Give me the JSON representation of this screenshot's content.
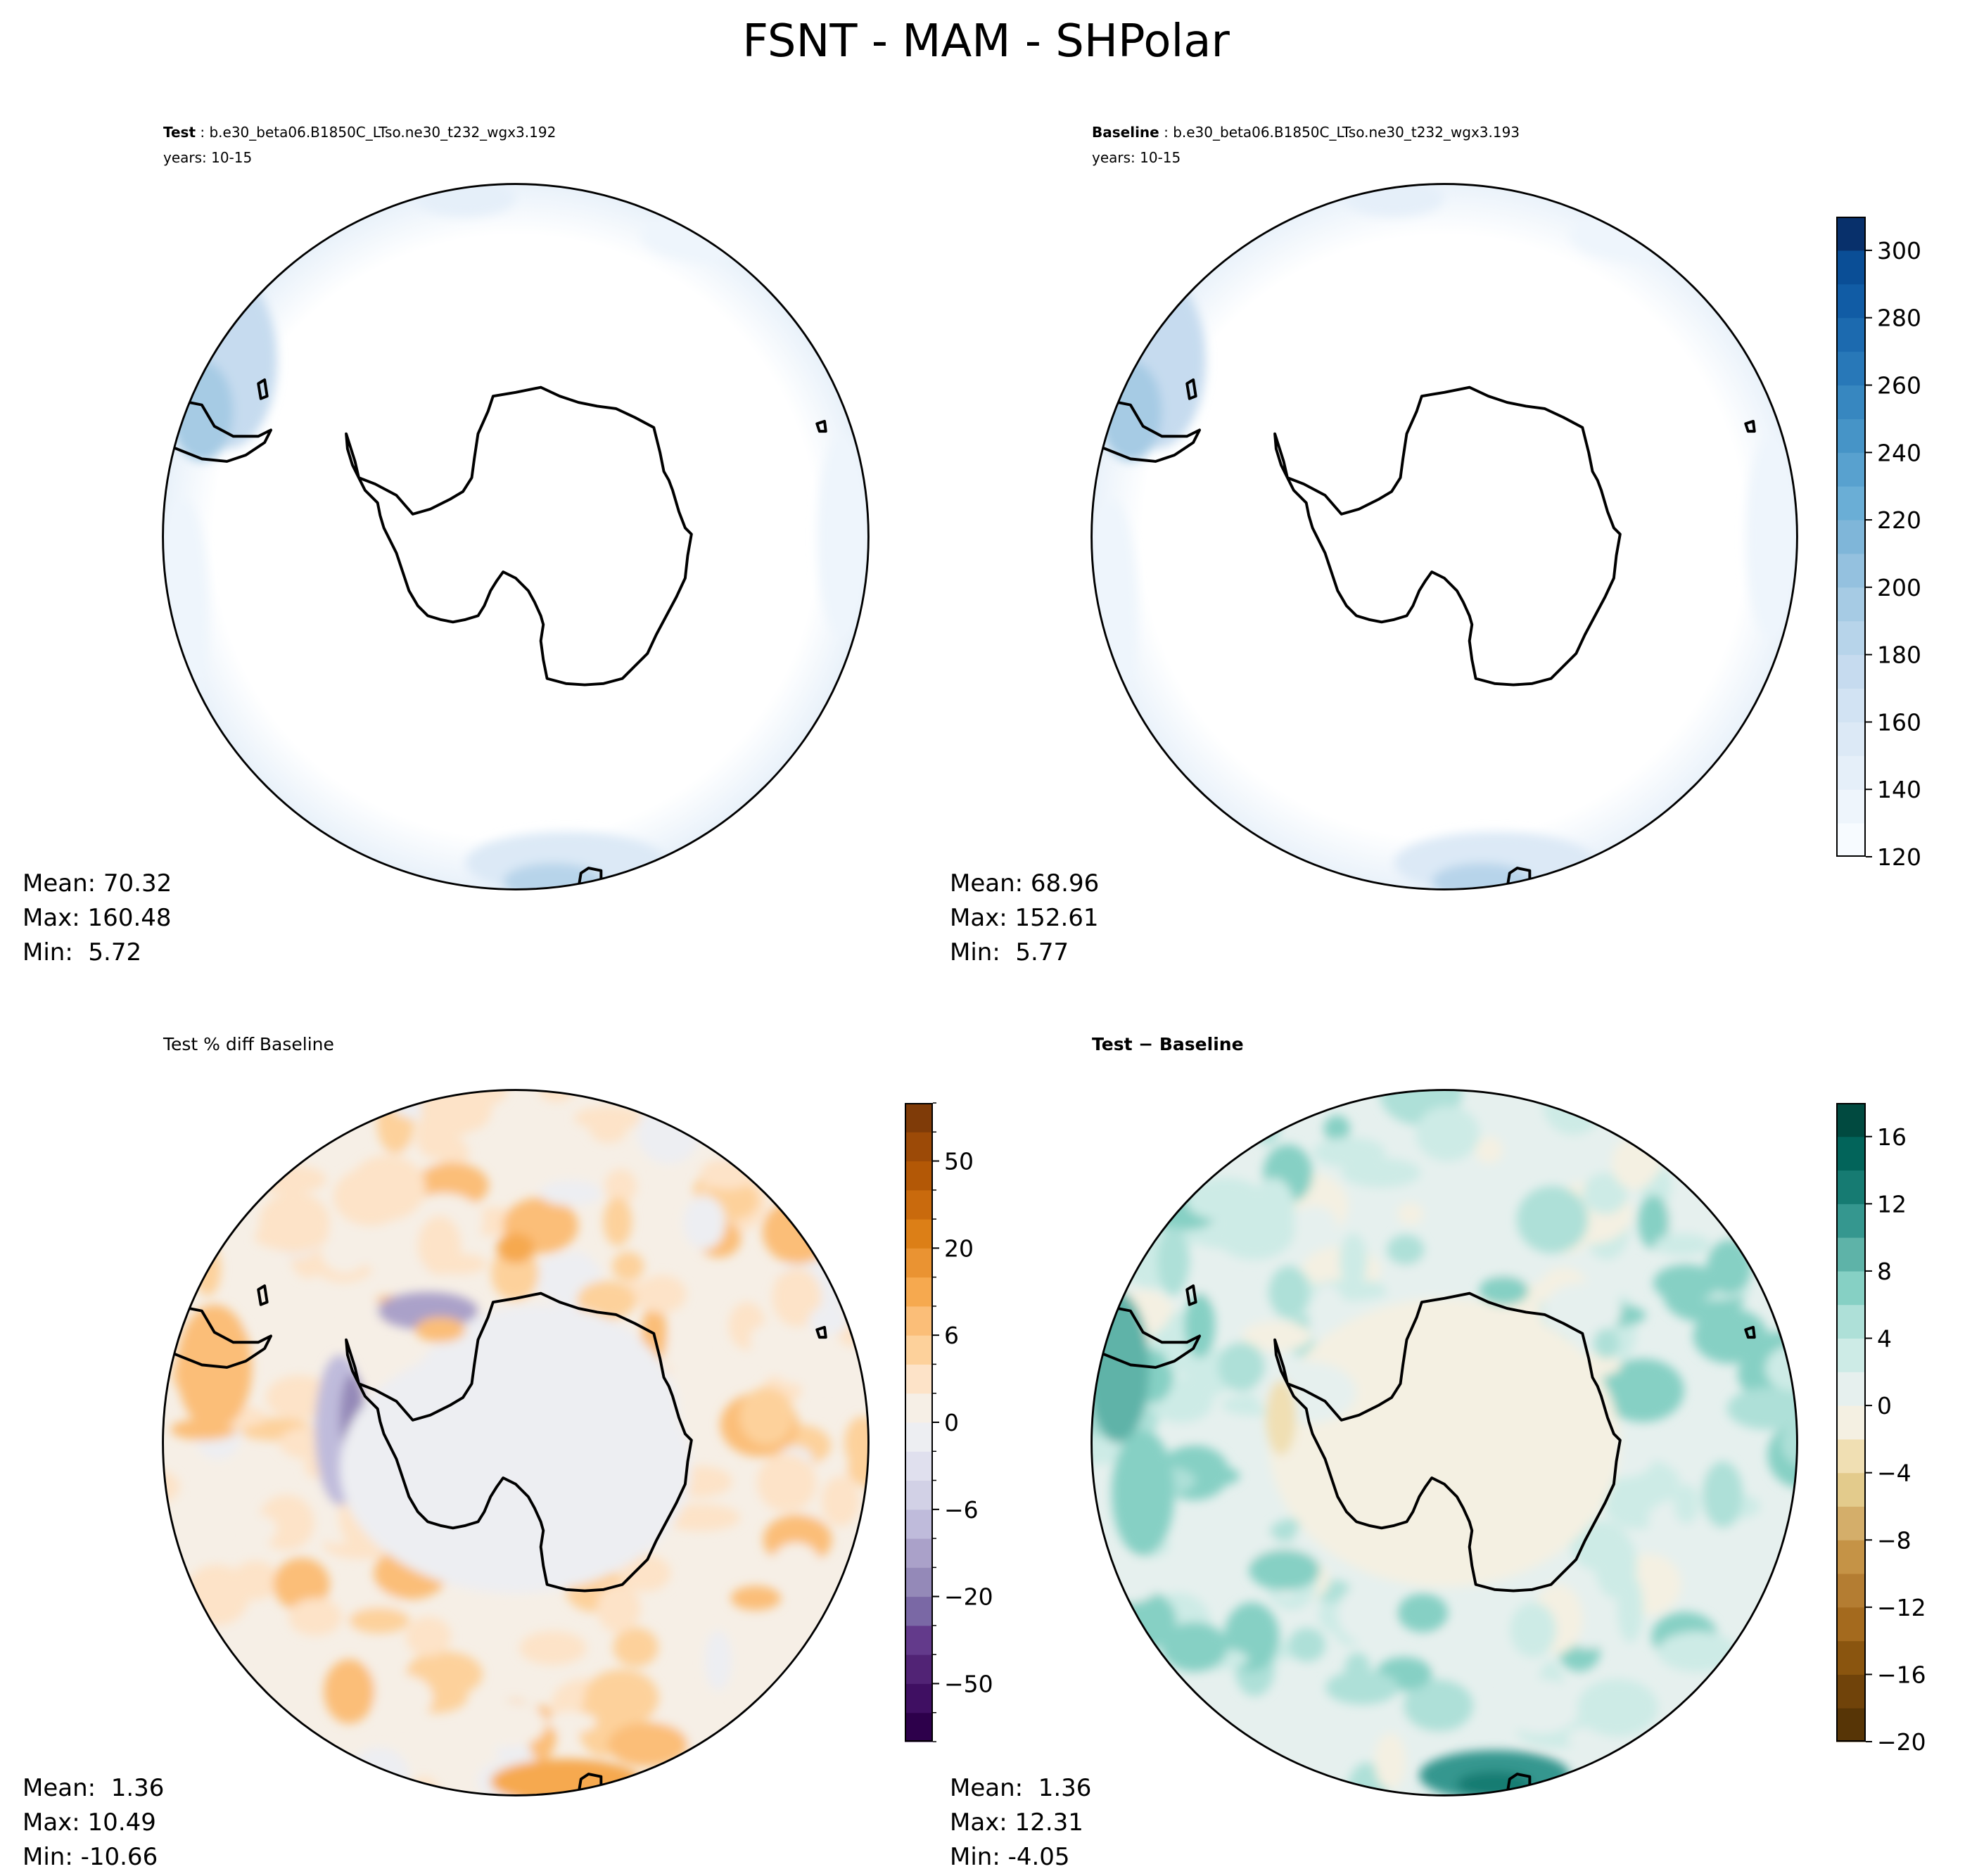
{
  "title": "FSNT - MAM - SHPolar",
  "panels": {
    "test": {
      "label": "Test",
      "case": " : b.e30_beta06.B1850C_LTso.ne30_t232_wgx3.192",
      "years": "years: 10-15",
      "stats": {
        "mean": "Mean: 70.32",
        "max": "Max: 160.48",
        "min": "Min:  5.72"
      }
    },
    "baseline": {
      "label": "Baseline",
      "case": " : b.e30_beta06.B1850C_LTso.ne30_t232_wgx3.193",
      "years": "years: 10-15",
      "stats": {
        "mean": "Mean: 68.96",
        "max": "Max: 152.61",
        "min": "Min:  5.77"
      }
    },
    "pctdiff": {
      "title": "Test % diff Baseline",
      "stats": {
        "mean": "Mean:  1.36",
        "max": "Max: 10.49",
        "min": "Min: -10.66"
      }
    },
    "diff": {
      "title": "Test − Baseline",
      "stats": {
        "mean": "Mean:  1.36",
        "max": "Max: 12.31",
        "min": "Min: -4.05"
      }
    }
  },
  "chart_data": [
    {
      "type": "heatmap",
      "name": "main_colorbar",
      "levels": [
        120,
        130,
        140,
        150,
        160,
        170,
        180,
        190,
        200,
        210,
        220,
        230,
        240,
        250,
        260,
        270,
        280,
        290,
        300,
        310
      ],
      "ticks": [
        "120",
        "140",
        "160",
        "180",
        "200",
        "220",
        "240",
        "260",
        "280",
        "300"
      ],
      "colors": [
        "#f7fbff",
        "#eef5fc",
        "#e5eff9",
        "#dce9f6",
        "#d2e3f3",
        "#c6dbef",
        "#b7d4ea",
        "#a6cbe4",
        "#94c1df",
        "#7fb6d9",
        "#6aaed6",
        "#58a1cf",
        "#4694c7",
        "#3787c0",
        "#2878b8",
        "#1c6aaf",
        "#115ca5",
        "#0a4e96",
        "#08306b"
      ]
    },
    {
      "type": "heatmap",
      "name": "pctdiff_colorbar",
      "levels": [
        -70,
        -60,
        -50,
        -40,
        -30,
        -20,
        -15,
        -10,
        -6,
        -4,
        -2,
        0,
        2,
        4,
        6,
        10,
        15,
        20,
        30,
        40,
        50,
        60,
        70
      ],
      "ticks": [
        "-50",
        "-20",
        "-6",
        "0",
        "6",
        "20",
        "50"
      ],
      "colors": [
        "#2d004b",
        "#3f0f62",
        "#512375",
        "#633a8b",
        "#7a68a5",
        "#9489b8",
        "#aaa1c9",
        "#bfbbdb",
        "#d2d1e6",
        "#e0e0ee",
        "#edeef2",
        "#f6efe6",
        "#fde3c8",
        "#fdd19b",
        "#fbbe78",
        "#f6a94f",
        "#ea9332",
        "#dc7f17",
        "#c96a0d",
        "#b35806",
        "#9c4a07",
        "#7f3b08"
      ]
    },
    {
      "type": "heatmap",
      "name": "diff_colorbar",
      "levels": [
        -20,
        -18,
        -16,
        -14,
        -12,
        -10,
        -8,
        -6,
        -4,
        -2,
        0,
        2,
        4,
        6,
        8,
        10,
        12,
        14,
        16,
        18
      ],
      "ticks": [
        "-20",
        "-16",
        "-12",
        "-8",
        "-4",
        "0",
        "4",
        "8",
        "12",
        "16"
      ],
      "colors": [
        "#573506",
        "#70430a",
        "#8a550f",
        "#a46a1e",
        "#b47d32",
        "#c59346",
        "#d4ae6a",
        "#e3cb8c",
        "#f0dfb3",
        "#f4f0e2",
        "#e6f0ee",
        "#cdebe6",
        "#aee0d8",
        "#86d0c4",
        "#5eb3a8",
        "#35978f",
        "#167b72",
        "#02645a",
        "#014a40"
      ]
    }
  ]
}
